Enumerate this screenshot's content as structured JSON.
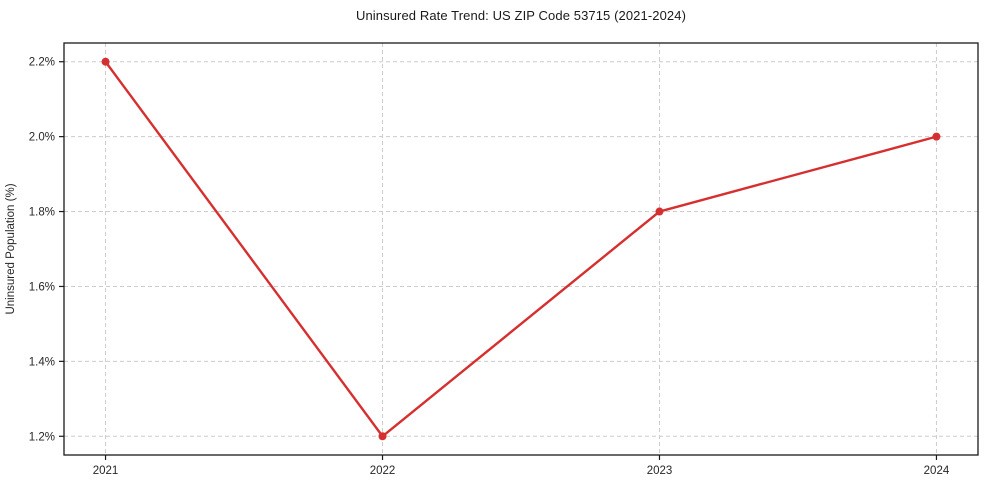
{
  "chart_data": {
    "type": "line",
    "title": "Uninsured Rate Trend: US ZIP Code 53715 (2021-2024)",
    "xlabel": "",
    "ylabel": "Uninsured Population (%)",
    "x": [
      2021,
      2022,
      2023,
      2024
    ],
    "xtick_labels": [
      "2021",
      "2022",
      "2023",
      "2024"
    ],
    "series": [
      {
        "name": "uninsured-rate",
        "values": [
          2.2,
          1.2,
          1.8,
          2.0
        ]
      }
    ],
    "yticks": [
      1.2,
      1.4,
      1.6,
      1.8,
      2.0,
      2.2
    ],
    "ytick_labels": [
      "1.2%",
      "1.4%",
      "1.6%",
      "1.8%",
      "2.0%",
      "2.2%"
    ],
    "xlim": [
      2020.85,
      2024.15
    ],
    "ylim": [
      1.15,
      2.25
    ],
    "grid": "dashed",
    "legend": "none",
    "line_color": "#d62f2f",
    "marker_color": "#d62f2f",
    "grid_color": "#cccccc",
    "axis_color": "#1a1a1a",
    "text_color": "#262626"
  }
}
